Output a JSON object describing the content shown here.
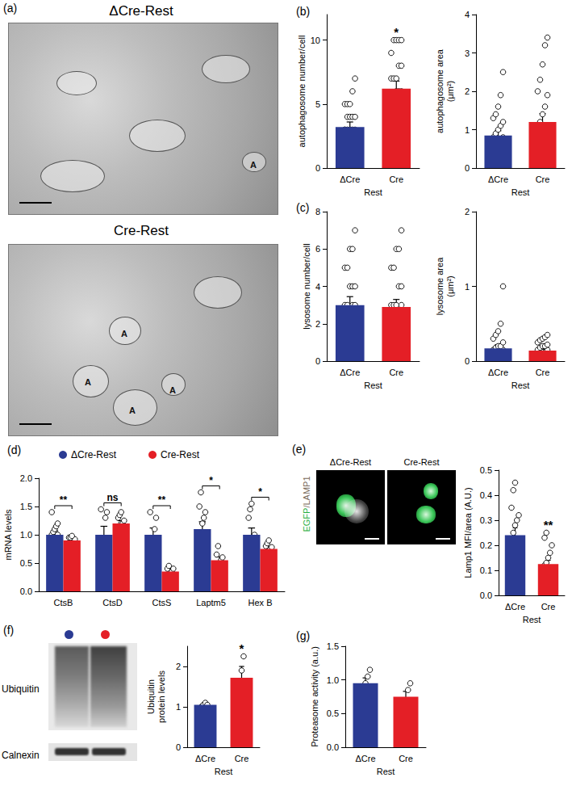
{
  "chart_data": [
    {
      "type": "bar",
      "title": "(b)",
      "ylabel": "autophagosome number/cell",
      "xlabel": "Rest",
      "categories": [
        "ΔCre",
        "Cre"
      ],
      "values": [
        3.2,
        6.2
      ],
      "error": [
        0.4,
        0.6
      ],
      "colors": [
        "#2b3b93",
        "#e41f26"
      ],
      "points": [
        [
          1,
          1,
          2,
          2,
          2,
          3,
          3,
          3,
          3,
          3,
          3,
          4,
          4,
          4,
          4,
          5,
          5,
          5,
          6,
          7
        ],
        [
          2,
          3,
          3,
          4,
          4,
          5,
          5,
          6,
          6,
          6,
          7,
          7,
          7,
          8,
          8,
          9,
          10,
          10,
          10,
          10
        ]
      ],
      "annotations": [
        {
          "category": "Cre",
          "text": "*"
        }
      ],
      "ylim": [
        0,
        12
      ],
      "yticks": [
        0,
        5,
        10
      ]
    },
    {
      "type": "bar",
      "ylabel": "autophagosome area\n(μm²)",
      "xlabel": "Rest",
      "categories": [
        "ΔCre",
        "Cre"
      ],
      "values": [
        0.85,
        1.2
      ],
      "error": [
        0.12,
        0.22
      ],
      "colors": [
        "#2b3b93",
        "#e41f26"
      ],
      "points": [
        [
          0.1,
          0.2,
          0.3,
          0.4,
          0.5,
          0.5,
          0.6,
          0.6,
          0.7,
          0.8,
          0.8,
          0.9,
          1.0,
          1.1,
          1.2,
          1.3,
          1.4,
          1.6,
          1.9,
          2.5
        ],
        [
          0.1,
          0.2,
          0.3,
          0.3,
          0.4,
          0.5,
          0.6,
          0.7,
          0.8,
          0.9,
          1.0,
          1.2,
          1.4,
          1.6,
          1.9,
          2.0,
          2.3,
          2.7,
          3.2,
          3.4
        ]
      ],
      "ylim": [
        0,
        4
      ],
      "yticks": [
        0,
        1,
        2,
        3,
        4
      ]
    },
    {
      "type": "bar",
      "title": "(c)",
      "ylabel": "lysosome number/cell",
      "xlabel": "Rest",
      "categories": [
        "ΔCre",
        "Cre"
      ],
      "values": [
        3.0,
        2.9
      ],
      "error": [
        0.45,
        0.4
      ],
      "colors": [
        "#2b3b93",
        "#e41f26"
      ],
      "points": [
        [
          0,
          0,
          1,
          1,
          1,
          2,
          2,
          2,
          3,
          3,
          3,
          3,
          4,
          4,
          4,
          5,
          5,
          6,
          6,
          7
        ],
        [
          0,
          0,
          1,
          1,
          1,
          2,
          2,
          2,
          2,
          3,
          3,
          3,
          3,
          4,
          4,
          5,
          5,
          6,
          6,
          7
        ]
      ],
      "ylim": [
        0,
        8
      ],
      "yticks": [
        0,
        2,
        4,
        6,
        8
      ]
    },
    {
      "type": "bar",
      "ylabel": "lysosome area\n(μm²)",
      "xlabel": "Rest",
      "categories": [
        "ΔCre",
        "Cre"
      ],
      "values": [
        0.17,
        0.14
      ],
      "error": [
        0.05,
        0.02
      ],
      "colors": [
        "#2b3b93",
        "#e41f26"
      ],
      "points": [
        [
          0,
          0,
          0.02,
          0.05,
          0.05,
          0.08,
          0.1,
          0.1,
          0.12,
          0.15,
          0.15,
          0.18,
          0.2,
          0.2,
          0.25,
          0.3,
          0.35,
          0.4,
          0.5,
          1.0
        ],
        [
          0,
          0.02,
          0.05,
          0.05,
          0.08,
          0.1,
          0.1,
          0.12,
          0.12,
          0.15,
          0.15,
          0.18,
          0.2,
          0.2,
          0.22,
          0.25,
          0.28,
          0.3,
          0.32,
          0.35
        ]
      ],
      "ylim": [
        0,
        2
      ],
      "yticks": [
        0,
        1,
        2
      ]
    },
    {
      "type": "bar",
      "title": "(d)",
      "ylabel": "mRNA levels",
      "legend": "top",
      "categories": [
        "CtsB",
        "CtsD",
        "CtsS",
        "Laptm5",
        "Hex B"
      ],
      "series": [
        {
          "name": "ΔCre-Rest",
          "color": "#2b3b93",
          "values": [
            1.0,
            1.0,
            1.0,
            1.1,
            1.0
          ],
          "error": [
            0.07,
            0.15,
            0.12,
            0.13,
            0.12
          ],
          "points": [
            [
              0.45,
              0.8,
              0.9,
              0.95,
              1.0,
              1.0,
              1.05,
              1.1,
              1.15,
              1.2,
              1.4
            ],
            [
              0.5,
              0.65,
              0.9,
              1.3,
              1.4,
              1.45
            ],
            [
              0.6,
              0.8,
              0.9,
              1.1,
              1.3,
              1.4
            ],
            [
              0.6,
              0.8,
              1.2,
              1.3,
              1.4,
              1.5,
              1.75
            ],
            [
              0.7,
              0.8,
              0.85,
              0.9,
              1.0,
              1.3,
              1.45,
              1.55
            ]
          ]
        },
        {
          "name": "Cre-Rest",
          "color": "#e41f26",
          "values": [
            0.9,
            1.2,
            0.35,
            0.55,
            0.75
          ],
          "error": [
            0.02,
            0.05,
            0.03,
            0.06,
            0.03
          ],
          "points": [
            [
              0.85,
              0.88,
              0.9,
              0.9,
              0.92,
              0.95,
              0.95,
              0.98
            ],
            [
              0.95,
              1.15,
              1.2,
              1.2,
              1.25,
              1.3,
              1.35,
              1.4
            ],
            [
              0.25,
              0.3,
              0.35,
              0.35,
              0.4,
              0.4,
              0.45
            ],
            [
              0.35,
              0.45,
              0.5,
              0.55,
              0.6,
              0.65,
              0.8
            ],
            [
              0.65,
              0.7,
              0.72,
              0.75,
              0.78,
              0.8,
              0.85,
              0.9
            ]
          ]
        }
      ],
      "annotations": [
        {
          "category": "CtsB",
          "text": "**"
        },
        {
          "category": "CtsD",
          "text": "ns"
        },
        {
          "category": "CtsS",
          "text": "**"
        },
        {
          "category": "Laptm5",
          "text": "*"
        },
        {
          "category": "Hex B",
          "text": "*"
        }
      ],
      "ylim": [
        0,
        2
      ],
      "yticks": [
        {
          "value": 0,
          "label": "0.0"
        },
        {
          "value": 0.5,
          "label": "0.5"
        },
        {
          "value": 1,
          "label": "1.0"
        },
        {
          "value": 1.5,
          "label": "1.5"
        },
        {
          "value": 2,
          "label": "2.0"
        }
      ]
    },
    {
      "type": "bar",
      "ylabel": "Lamp1 MFI/area (A.U.)",
      "xlabel": "Rest",
      "categories": [
        "ΔCre",
        "Cre"
      ],
      "values": [
        0.24,
        0.125
      ],
      "error": [
        0.03,
        0.015
      ],
      "colors": [
        "#2b3b93",
        "#e41f26"
      ],
      "points": [
        [
          0.06,
          0.12,
          0.15,
          0.18,
          0.2,
          0.22,
          0.25,
          0.28,
          0.3,
          0.32,
          0.35,
          0.42,
          0.45
        ],
        [
          0.05,
          0.06,
          0.08,
          0.1,
          0.1,
          0.12,
          0.13,
          0.15,
          0.17,
          0.2,
          0.23,
          0.25
        ]
      ],
      "annotations": [
        {
          "category": "Cre",
          "text": "**"
        }
      ],
      "ylim": [
        0,
        0.5
      ],
      "yticks": [
        {
          "value": 0,
          "label": "0.0"
        },
        {
          "value": 0.1,
          "label": "0.1"
        },
        {
          "value": 0.2,
          "label": "0.2"
        },
        {
          "value": 0.3,
          "label": "0.3"
        },
        {
          "value": 0.4,
          "label": "0.4"
        },
        {
          "value": 0.5,
          "label": "0.5"
        }
      ]
    },
    {
      "type": "bar",
      "ylabel": "Ubiquitin\nprotein levels",
      "xlabel": "Rest",
      "categories": [
        "ΔCre",
        "Cre"
      ],
      "values": [
        1.05,
        1.72
      ],
      "error": [
        0.05,
        0.28
      ],
      "colors": [
        "#2b3b93",
        "#e41f26"
      ],
      "points": [
        [
          1.0,
          1.05,
          1.1,
          1.05
        ],
        [
          1.3,
          1.5,
          1.9,
          2.25
        ]
      ],
      "annotations": [
        {
          "category": "Cre",
          "text": "*"
        }
      ],
      "ylim": [
        0,
        2.5
      ],
      "yticks": [
        0,
        1,
        2
      ]
    },
    {
      "type": "bar",
      "title": "(g)",
      "ylabel": "Proteasome activity (a.u.)",
      "xlabel": "Rest",
      "categories": [
        "ΔCre",
        "Cre"
      ],
      "values": [
        0.95,
        0.75
      ],
      "error": [
        0.08,
        0.08
      ],
      "colors": [
        "#2b3b93",
        "#e41f26"
      ],
      "points": [
        [
          0.75,
          0.9,
          0.95,
          1.05,
          1.15
        ],
        [
          0.6,
          0.65,
          0.7,
          0.85,
          0.95
        ]
      ],
      "ylim": [
        0,
        1.5
      ],
      "yticks": [
        {
          "value": 0,
          "label": "0.0"
        },
        {
          "value": 0.5,
          "label": "0.5"
        },
        {
          "value": 1,
          "label": "1.0"
        },
        {
          "value": 1.5,
          "label": "1.5"
        }
      ]
    }
  ],
  "images": [
    {
      "title": "(a)",
      "panels": [
        {
          "caption": "ΔCre-Rest",
          "markers": [
            "A"
          ]
        },
        {
          "caption": "Cre-Rest",
          "markers": [
            "A",
            "A",
            "A",
            "A"
          ]
        }
      ]
    },
    {
      "title": "(e)",
      "stain": [
        "EGFP",
        "/LAMP1"
      ],
      "panels": [
        {
          "caption": "ΔCre-Rest"
        },
        {
          "caption": "Cre-Rest"
        }
      ]
    },
    {
      "title": "(f)",
      "lanes": [
        "#2b3b93",
        "#e41f26"
      ],
      "bands": [
        "Ubiquitin",
        "Calnexin"
      ]
    }
  ]
}
